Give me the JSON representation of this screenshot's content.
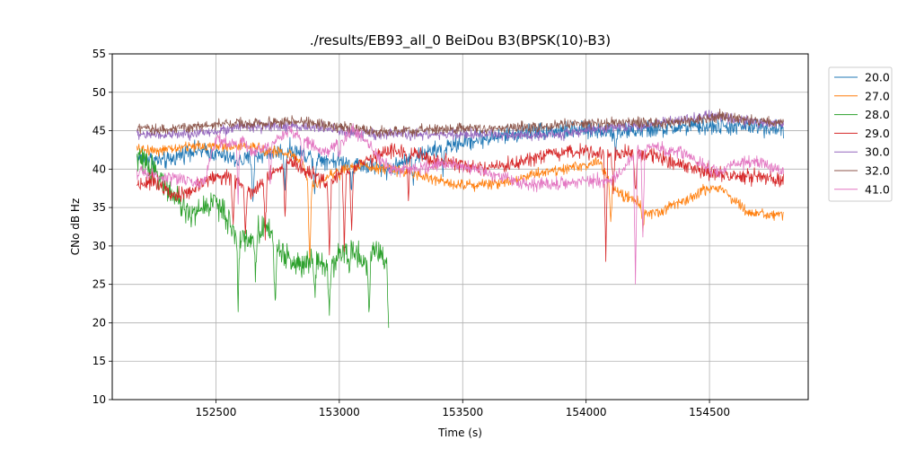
{
  "chart_data": {
    "type": "line",
    "title": "./results/EB93_all_0 BeiDou B3(BPSK(10)-B3)",
    "xlabel": "Time (s)",
    "ylabel": "CNo dB Hz",
    "xlim": [
      152080,
      154900
    ],
    "ylim": [
      10,
      55
    ],
    "xticks": [
      152500,
      153000,
      153500,
      154000,
      154500
    ],
    "yticks": [
      10,
      15,
      20,
      25,
      30,
      35,
      40,
      45,
      50,
      55
    ],
    "grid": true,
    "legend_position": "right-outside-top",
    "series": [
      {
        "name": "20.0",
        "color": "#1f77b4",
        "start": 152180,
        "end": 154800,
        "noise": 0.8,
        "spikes": [
          [
            152650,
            36
          ],
          [
            152780,
            38
          ],
          [
            152900,
            37
          ],
          [
            153050,
            38
          ],
          [
            153300,
            38.5
          ],
          [
            153420,
            40
          ],
          [
            154120,
            42
          ]
        ],
        "points": [
          [
            152180,
            41.5
          ],
          [
            152300,
            41
          ],
          [
            152400,
            42.5
          ],
          [
            152500,
            42
          ],
          [
            152600,
            41
          ],
          [
            152700,
            42
          ],
          [
            152800,
            42.5
          ],
          [
            152900,
            41.5
          ],
          [
            153000,
            41
          ],
          [
            153100,
            40.5
          ],
          [
            153200,
            40
          ],
          [
            153300,
            41.5
          ],
          [
            153400,
            42.5
          ],
          [
            153500,
            43.5
          ],
          [
            153600,
            44
          ],
          [
            153700,
            44.5
          ],
          [
            153800,
            45
          ],
          [
            153900,
            45
          ],
          [
            154000,
            45
          ],
          [
            154100,
            45
          ],
          [
            154200,
            45
          ],
          [
            154300,
            45.2
          ],
          [
            154400,
            45.5
          ],
          [
            154500,
            45.5
          ],
          [
            154600,
            45.5
          ],
          [
            154700,
            45.5
          ],
          [
            154800,
            45.2
          ]
        ]
      },
      {
        "name": "27.0",
        "color": "#ff7f0e",
        "start": 152180,
        "end": 154800,
        "noise": 0.5,
        "spikes": [
          [
            152880,
            28
          ],
          [
            153000,
            39
          ],
          [
            154100,
            33
          ],
          [
            154230,
            32
          ]
        ],
        "points": [
          [
            152180,
            42.5
          ],
          [
            152300,
            42.5
          ],
          [
            152400,
            43
          ],
          [
            152500,
            43
          ],
          [
            152600,
            43
          ],
          [
            152700,
            42.5
          ],
          [
            152800,
            42
          ],
          [
            152850,
            41
          ],
          [
            152880,
            37
          ],
          [
            152900,
            38
          ],
          [
            153000,
            40
          ],
          [
            153100,
            40.5
          ],
          [
            153200,
            40
          ],
          [
            153300,
            39.5
          ],
          [
            153400,
            38.5
          ],
          [
            153500,
            38
          ],
          [
            153600,
            38
          ],
          [
            153700,
            38.5
          ],
          [
            153800,
            39.5
          ],
          [
            153900,
            40
          ],
          [
            154000,
            40.5
          ],
          [
            154050,
            41
          ],
          [
            154100,
            38
          ],
          [
            154150,
            36.5
          ],
          [
            154200,
            36
          ],
          [
            154250,
            34
          ],
          [
            154300,
            34.5
          ],
          [
            154400,
            36
          ],
          [
            154500,
            37.5
          ],
          [
            154550,
            37.5
          ],
          [
            154600,
            36
          ],
          [
            154650,
            34.5
          ],
          [
            154700,
            34
          ],
          [
            154800,
            34
          ]
        ]
      },
      {
        "name": "28.0",
        "color": "#2ca02c",
        "start": 152180,
        "end": 153200,
        "noise": 1.2,
        "spikes": [
          [
            152590,
            23
          ],
          [
            152660,
            26
          ],
          [
            152740,
            21.5
          ],
          [
            152900,
            24
          ],
          [
            152960,
            22
          ],
          [
            153040,
            27
          ],
          [
            153120,
            21
          ],
          [
            153200,
            19.7
          ]
        ],
        "points": [
          [
            152180,
            41.5
          ],
          [
            152250,
            40
          ],
          [
            152300,
            37.5
          ],
          [
            152350,
            35.5
          ],
          [
            152400,
            34
          ],
          [
            152450,
            35
          ],
          [
            152500,
            36
          ],
          [
            152550,
            33
          ],
          [
            152600,
            31
          ],
          [
            152650,
            31
          ],
          [
            152700,
            33
          ],
          [
            152750,
            30
          ],
          [
            152800,
            28
          ],
          [
            152850,
            27.5
          ],
          [
            152900,
            29
          ],
          [
            152950,
            27
          ],
          [
            153000,
            29
          ],
          [
            153050,
            29.5
          ],
          [
            153100,
            28
          ],
          [
            153150,
            29.5
          ],
          [
            153200,
            27.5
          ]
        ]
      },
      {
        "name": "29.0",
        "color": "#d62728",
        "start": 152180,
        "end": 154800,
        "noise": 0.7,
        "spikes": [
          [
            152570,
            33
          ],
          [
            152620,
            32
          ],
          [
            152700,
            31.5
          ],
          [
            152780,
            34
          ],
          [
            152960,
            29
          ],
          [
            153020,
            30
          ],
          [
            153050,
            32
          ],
          [
            153280,
            36
          ],
          [
            154080,
            27.8
          ],
          [
            154110,
            38
          ],
          [
            154200,
            36.5
          ]
        ],
        "points": [
          [
            152180,
            38
          ],
          [
            152250,
            38.5
          ],
          [
            152300,
            37.5
          ],
          [
            152350,
            36.5
          ],
          [
            152400,
            37
          ],
          [
            152450,
            38.5
          ],
          [
            152500,
            39
          ],
          [
            152550,
            39
          ],
          [
            152600,
            38
          ],
          [
            152650,
            37
          ],
          [
            152700,
            39
          ],
          [
            152750,
            40
          ],
          [
            152800,
            41
          ],
          [
            152850,
            40
          ],
          [
            152900,
            39
          ],
          [
            152950,
            38
          ],
          [
            153000,
            39.5
          ],
          [
            153050,
            39.5
          ],
          [
            153100,
            41
          ],
          [
            153200,
            42.5
          ],
          [
            153300,
            42
          ],
          [
            153400,
            41
          ],
          [
            153500,
            40.5
          ],
          [
            153600,
            40
          ],
          [
            153700,
            40.5
          ],
          [
            153800,
            41.5
          ],
          [
            153900,
            42
          ],
          [
            154000,
            42.5
          ],
          [
            154100,
            42
          ],
          [
            154200,
            42
          ],
          [
            154300,
            41.5
          ],
          [
            154400,
            40.5
          ],
          [
            154500,
            39.5
          ],
          [
            154600,
            39
          ],
          [
            154700,
            39
          ],
          [
            154800,
            38.5
          ]
        ]
      },
      {
        "name": "30.0",
        "color": "#9467bd",
        "start": 152180,
        "end": 154800,
        "noise": 0.5,
        "spikes": [],
        "points": [
          [
            152180,
            44.5
          ],
          [
            152300,
            44.5
          ],
          [
            152400,
            44.5
          ],
          [
            152500,
            45
          ],
          [
            152600,
            45.5
          ],
          [
            152700,
            45.5
          ],
          [
            152800,
            45.5
          ],
          [
            152900,
            45.5
          ],
          [
            153000,
            45
          ],
          [
            153100,
            44.5
          ],
          [
            153200,
            44.5
          ],
          [
            153300,
            44.5
          ],
          [
            153400,
            44.5
          ],
          [
            153500,
            44.5
          ],
          [
            153600,
            44.5
          ],
          [
            153700,
            44.5
          ],
          [
            153800,
            44.5
          ],
          [
            153900,
            44.5
          ],
          [
            154000,
            45
          ],
          [
            154100,
            45.5
          ],
          [
            154200,
            45.5
          ],
          [
            154300,
            46
          ],
          [
            154400,
            46.5
          ],
          [
            154500,
            47
          ],
          [
            154600,
            46.5
          ],
          [
            154700,
            46
          ],
          [
            154800,
            46
          ]
        ]
      },
      {
        "name": "32.0",
        "color": "#8c564b",
        "start": 152180,
        "end": 154800,
        "noise": 0.5,
        "spikes": [],
        "points": [
          [
            152180,
            45.2
          ],
          [
            152300,
            45.2
          ],
          [
            152400,
            45.5
          ],
          [
            152500,
            45.8
          ],
          [
            152600,
            46
          ],
          [
            152700,
            46
          ],
          [
            152800,
            46.2
          ],
          [
            152900,
            46
          ],
          [
            153000,
            45.5
          ],
          [
            153100,
            45
          ],
          [
            153200,
            44.8
          ],
          [
            153300,
            45
          ],
          [
            153400,
            45.2
          ],
          [
            153500,
            45.3
          ],
          [
            153600,
            45.3
          ],
          [
            153700,
            45.5
          ],
          [
            153800,
            45.5
          ],
          [
            153900,
            45.8
          ],
          [
            154000,
            46
          ],
          [
            154100,
            46
          ],
          [
            154200,
            46
          ],
          [
            154300,
            46
          ],
          [
            154400,
            46.2
          ],
          [
            154500,
            46.5
          ],
          [
            154550,
            47
          ],
          [
            154600,
            46.5
          ],
          [
            154700,
            46.3
          ],
          [
            154800,
            46
          ]
        ]
      },
      {
        "name": "41.0",
        "color": "#e377c2",
        "start": 152180,
        "end": 154800,
        "noise": 0.6,
        "spikes": [
          [
            152590,
            36
          ],
          [
            152720,
            38
          ],
          [
            152850,
            40
          ],
          [
            153000,
            41
          ],
          [
            154200,
            25
          ],
          [
            154230,
            31
          ]
        ],
        "points": [
          [
            152180,
            39.5
          ],
          [
            152300,
            39
          ],
          [
            152400,
            38.5
          ],
          [
            152450,
            38
          ],
          [
            152500,
            44
          ],
          [
            152550,
            43
          ],
          [
            152600,
            44
          ],
          [
            152650,
            42
          ],
          [
            152700,
            43
          ],
          [
            152750,
            44
          ],
          [
            152800,
            45
          ],
          [
            152850,
            44
          ],
          [
            152900,
            43
          ],
          [
            152950,
            42
          ],
          [
            153000,
            43.5
          ],
          [
            153050,
            45
          ],
          [
            153100,
            44
          ],
          [
            153200,
            40
          ],
          [
            153300,
            40
          ],
          [
            153400,
            40.5
          ],
          [
            153500,
            40.5
          ],
          [
            153600,
            39.5
          ],
          [
            153700,
            38.5
          ],
          [
            153800,
            38
          ],
          [
            153900,
            38
          ],
          [
            154000,
            38.5
          ],
          [
            154100,
            38.5
          ],
          [
            154150,
            40
          ],
          [
            154200,
            42
          ],
          [
            154250,
            43
          ],
          [
            154300,
            42.5
          ],
          [
            154400,
            42
          ],
          [
            154500,
            40
          ],
          [
            154550,
            39.5
          ],
          [
            154600,
            40.5
          ],
          [
            154700,
            41
          ],
          [
            154800,
            39.5
          ]
        ]
      }
    ]
  }
}
